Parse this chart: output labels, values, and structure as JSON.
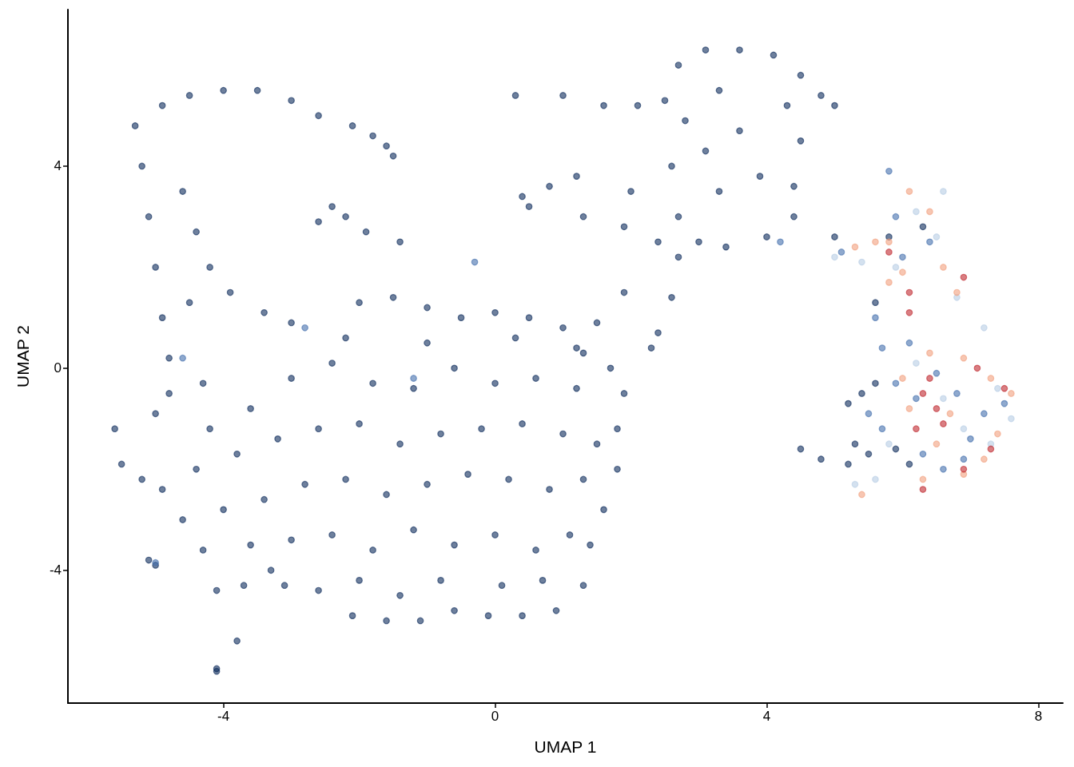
{
  "chart_data": {
    "type": "scatter",
    "xlabel": "UMAP 1",
    "ylabel": "UMAP 2",
    "xlim": [
      -6.29,
      8.36
    ],
    "ylim": [
      -6.63,
      7.1
    ],
    "xticks": [
      -4,
      0,
      4,
      8
    ],
    "yticks": [
      -4,
      0,
      4
    ],
    "grid": false,
    "marker": "circle",
    "series": [
      {
        "color": "#0d2c5c",
        "x": [
          -5.3,
          -4.9,
          -4.5,
          -4.0,
          -3.5,
          -3.0,
          -2.6,
          -2.1,
          -1.8,
          -1.5,
          -1.6,
          -5.2,
          -5.1,
          -5.0,
          -4.9,
          -4.8,
          -4.6,
          -4.4,
          -4.2,
          -3.9,
          -3.4,
          -3.0,
          -4.5,
          -2.4,
          -2.2,
          -2.6,
          -1.9,
          -1.4,
          0.4,
          0.5,
          0.8,
          1.2,
          -2.0,
          -1.5,
          -1.0,
          -0.5,
          0.0,
          0.5,
          1.0,
          1.5,
          -2.2,
          -1.0,
          0.3,
          1.2,
          -5.6,
          -5.5,
          -5.2,
          -4.9,
          -4.6,
          -4.3,
          -4.1,
          -3.7,
          -3.1,
          -2.6,
          -2.1,
          -1.6,
          -1.1,
          -0.6,
          -0.1,
          0.4,
          0.9,
          1.3,
          1.4,
          1.6,
          1.8,
          1.8,
          1.9,
          1.7,
          1.3,
          -4.8,
          -5.0,
          -4.3,
          -4.2,
          -3.6,
          -3.0,
          -2.4,
          -1.8,
          -1.2,
          -0.6,
          0.0,
          0.6,
          1.2,
          -4.4,
          -3.8,
          -3.2,
          -2.6,
          -2.0,
          -1.4,
          -0.8,
          -0.2,
          0.4,
          1.0,
          1.5,
          -4.0,
          -3.4,
          -2.8,
          -2.2,
          -1.6,
          -1.0,
          -0.4,
          0.2,
          0.8,
          1.3,
          -3.6,
          -3.0,
          -2.4,
          -1.8,
          -1.2,
          -0.6,
          0.0,
          0.6,
          1.1,
          -3.3,
          -2.0,
          -1.4,
          -0.8,
          0.1,
          0.7,
          -5.0,
          -5.1,
          -4.1,
          -4.1,
          -3.8,
          0.3,
          1.0,
          1.6,
          2.1,
          2.5,
          1.3,
          1.9,
          2.4,
          2.7,
          2.6,
          2.4,
          2.3,
          1.9,
          2.0,
          2.7,
          3.1,
          3.6,
          4.1,
          4.5,
          4.3,
          4.5,
          4.4,
          4.4,
          4.0,
          3.4,
          3.0,
          2.7,
          2.6,
          2.8,
          3.3,
          3.6,
          3.9,
          3.3,
          3.1,
          5.0,
          4.8,
          4.5,
          4.8,
          5.2,
          5.5,
          5.3,
          5.6,
          5.2,
          5.4,
          5.9,
          6.1,
          5.8,
          6.3,
          5.6,
          5.0
        ],
        "values": [
          4.8,
          5.2,
          5.4,
          5.5,
          5.5,
          5.3,
          5.0,
          4.8,
          4.6,
          4.2,
          4.4,
          4.0,
          3.0,
          2.0,
          1.0,
          0.2,
          3.5,
          2.7,
          2.0,
          1.5,
          1.1,
          0.9,
          1.3,
          3.2,
          3.0,
          2.9,
          2.7,
          2.5,
          3.4,
          3.2,
          3.6,
          3.8,
          1.3,
          1.4,
          1.2,
          1.0,
          1.1,
          1.0,
          0.8,
          0.9,
          0.6,
          0.5,
          0.6,
          0.4,
          -1.2,
          -1.9,
          -2.2,
          -2.4,
          -3.0,
          -3.6,
          -4.4,
          -4.3,
          -4.3,
          -4.4,
          -4.9,
          -5.0,
          -5.0,
          -4.8,
          -4.9,
          -4.9,
          -4.8,
          -4.3,
          -3.5,
          -2.8,
          -2.0,
          -1.2,
          -0.5,
          0.0,
          0.3,
          -0.5,
          -0.9,
          -0.3,
          -1.2,
          -0.8,
          -0.2,
          0.1,
          -0.3,
          -0.4,
          0.0,
          -0.3,
          -0.2,
          -0.4,
          -2.0,
          -1.7,
          -1.4,
          -1.2,
          -1.1,
          -1.5,
          -1.3,
          -1.2,
          -1.1,
          -1.3,
          -1.5,
          -2.8,
          -2.6,
          -2.3,
          -2.2,
          -2.5,
          -2.3,
          -2.1,
          -2.2,
          -2.4,
          -2.2,
          -3.5,
          -3.4,
          -3.3,
          -3.6,
          -3.2,
          -3.5,
          -3.3,
          -3.6,
          -3.3,
          -4.0,
          -4.2,
          -4.5,
          -4.2,
          -4.3,
          -4.2,
          -3.9,
          -3.8,
          -6.0,
          -5.95,
          -5.4,
          5.4,
          5.4,
          5.2,
          5.2,
          5.3,
          3.0,
          2.8,
          2.5,
          2.2,
          1.4,
          0.7,
          0.4,
          1.5,
          3.5,
          6.0,
          6.3,
          6.3,
          6.2,
          5.8,
          5.2,
          4.5,
          3.6,
          3.0,
          2.6,
          2.4,
          2.5,
          3.0,
          4.0,
          4.9,
          5.5,
          4.7,
          3.8,
          3.5,
          4.3,
          5.2,
          5.4,
          -1.6,
          -1.8,
          -1.9,
          -1.7,
          -1.5,
          -0.3,
          -0.7,
          -0.5,
          -1.6,
          -1.9,
          2.6,
          2.8,
          1.3,
          2.6
        ]
      },
      {
        "color": "#b7cde5",
        "x": [
          5.0,
          5.4,
          5.9,
          6.2,
          6.5,
          7.2,
          6.8,
          7.4,
          6.6,
          6.9,
          5.6,
          7.3,
          6.2,
          5.8,
          7.6,
          6.6,
          5.3
        ],
        "values": [
          2.2,
          2.1,
          2.0,
          3.1,
          2.6,
          0.8,
          1.4,
          -0.4,
          -0.6,
          -1.2,
          -2.2,
          -1.5,
          0.1,
          -1.5,
          -1.0,
          3.5,
          -2.3
        ]
      },
      {
        "color": "#f2a07e",
        "x": [
          5.3,
          5.6,
          5.8,
          6.1,
          6.4,
          6.6,
          6.8,
          5.8,
          6.0,
          6.9,
          7.3,
          7.6,
          7.2,
          6.9,
          6.3,
          6.7,
          6.1,
          7.4,
          6.5,
          5.4,
          6.0,
          6.4
        ],
        "values": [
          2.4,
          2.5,
          2.5,
          3.5,
          3.1,
          2.0,
          1.5,
          1.7,
          1.9,
          0.2,
          -0.2,
          -0.5,
          -1.8,
          -2.1,
          -2.2,
          -0.9,
          -0.8,
          -1.3,
          -1.5,
          -2.5,
          -0.2,
          0.3
        ]
      },
      {
        "color": "#4470ad",
        "x": [
          -4.6,
          -2.8,
          -1.2,
          -5.0,
          -0.3,
          5.8,
          5.9,
          5.1,
          5.6,
          5.7,
          6.1,
          5.9,
          6.2,
          6.5,
          6.8,
          7.2,
          7.5,
          6.9,
          6.3,
          5.7,
          6.6,
          5.5,
          7.0,
          6.0,
          6.4,
          4.2
        ],
        "values": [
          0.2,
          0.8,
          -0.2,
          -3.85,
          2.1,
          3.9,
          3.0,
          2.3,
          1.0,
          0.4,
          0.5,
          -0.3,
          -0.6,
          -0.1,
          -0.5,
          -0.9,
          -0.7,
          -1.8,
          -1.7,
          -1.2,
          -2.0,
          -0.9,
          -1.4,
          2.2,
          2.5,
          2.5
        ]
      },
      {
        "color": "#c0282f",
        "x": [
          5.8,
          6.1,
          6.9,
          6.1,
          6.2,
          6.4,
          6.3,
          6.5,
          7.1,
          7.5,
          7.3,
          6.9,
          6.6,
          6.3
        ],
        "values": [
          2.3,
          1.5,
          1.8,
          1.1,
          -1.2,
          -0.2,
          -0.5,
          -0.8,
          0.0,
          -0.4,
          -1.6,
          -2.0,
          -1.1,
          -2.4
        ]
      }
    ]
  }
}
